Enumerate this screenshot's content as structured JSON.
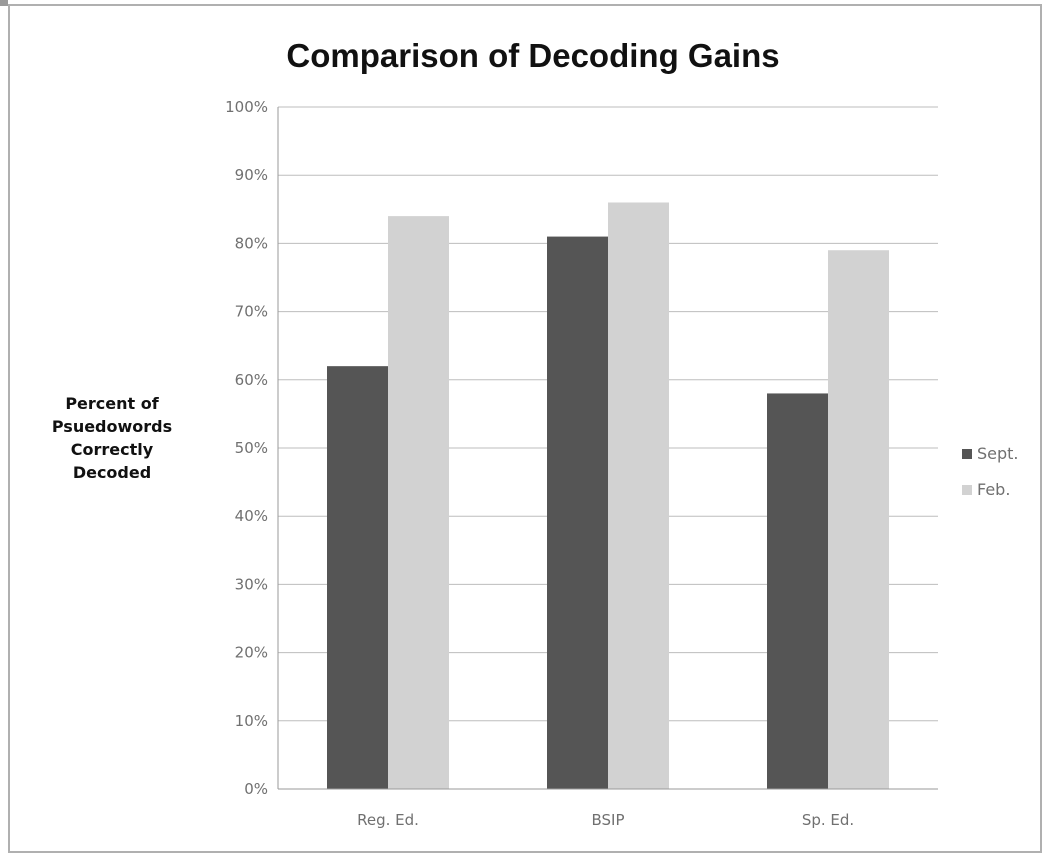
{
  "chart_data": {
    "type": "bar",
    "title": "Comparison of Decoding Gains",
    "ylabel": "Percent of Psuedowords Correctly Decoded",
    "ylabel_lines": [
      "Percent of",
      "Psuedowords",
      "Correctly",
      "Decoded"
    ],
    "xlabel": "",
    "categories": [
      "Reg. Ed.",
      "BSIP",
      "Sp. Ed."
    ],
    "series": [
      {
        "name": "Sept.",
        "values": [
          62,
          81,
          58
        ],
        "color": "#555555"
      },
      {
        "name": "Feb.",
        "values": [
          84,
          86,
          79
        ],
        "color": "#d2d2d2"
      }
    ],
    "ylim": [
      0,
      100
    ],
    "yticks": [
      0,
      10,
      20,
      30,
      40,
      50,
      60,
      70,
      80,
      90,
      100
    ],
    "ytick_suffix": "%",
    "grid": true,
    "legend_position": "right"
  }
}
